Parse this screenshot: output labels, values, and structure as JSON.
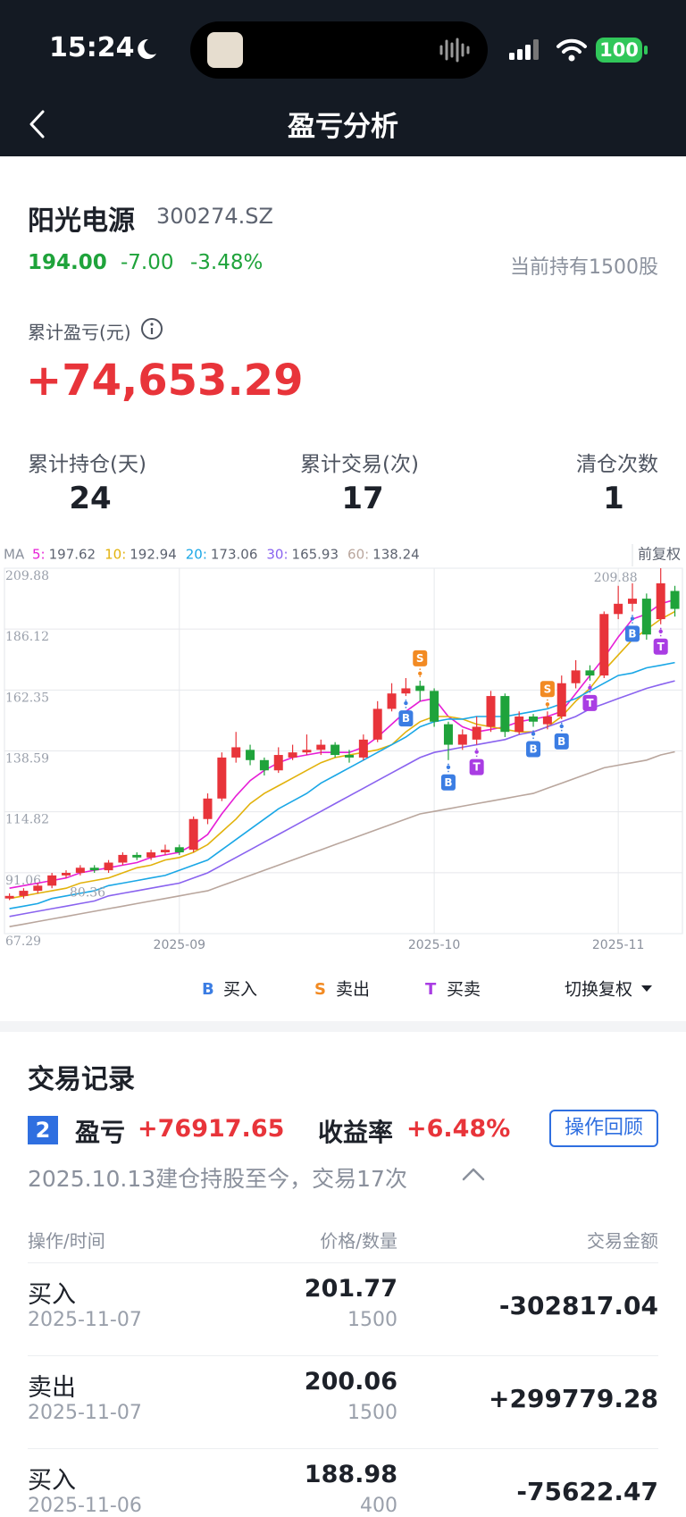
{
  "status_bar": {
    "time": "15:24",
    "battery": "100"
  },
  "nav": {
    "title": "盈亏分析"
  },
  "stock": {
    "name": "阳光电源",
    "code": "300274.SZ",
    "price": "194.00",
    "change": "-7.00",
    "change_pct": "-3.48%",
    "holding": "当前持有1500股"
  },
  "summary": {
    "pnl_label": "累计盈亏(元)",
    "pnl": "+74,653.29",
    "stats": [
      {
        "label": "累计持仓(天)",
        "value": "24"
      },
      {
        "label": "累计交易(次)",
        "value": "17"
      },
      {
        "label": "清仓次数",
        "value": "1"
      }
    ]
  },
  "chart_data": {
    "type": "candlestick",
    "ma_label": "MA",
    "corner_label": "前复权",
    "switch_label": "切换复权",
    "ylim": [
      67.29,
      209.88
    ],
    "yticks": [
      209.88,
      186.12,
      162.35,
      138.59,
      114.82,
      91.06,
      67.29
    ],
    "grid": true,
    "up_color": "#e8343a",
    "down_color": "#1fa33b",
    "categories": [
      null,
      null,
      null,
      null,
      null,
      null,
      null,
      null,
      null,
      null,
      null,
      null,
      "2025-09",
      null,
      null,
      null,
      null,
      null,
      null,
      null,
      null,
      null,
      null,
      null,
      null,
      null,
      null,
      null,
      null,
      null,
      "2025-10",
      null,
      null,
      null,
      null,
      null,
      null,
      null,
      null,
      null,
      null,
      null,
      null,
      "2025-11",
      null,
      null,
      null,
      null
    ],
    "candles": [
      [
        81,
        82,
        83,
        80.36
      ],
      [
        82,
        84,
        85,
        81
      ],
      [
        84,
        86,
        87,
        83
      ],
      [
        86,
        90,
        91,
        85
      ],
      [
        90,
        91,
        92,
        89
      ],
      [
        91,
        93,
        94,
        90
      ],
      [
        93,
        92,
        94,
        91
      ],
      [
        92,
        95,
        96,
        91
      ],
      [
        95,
        98,
        99,
        94
      ],
      [
        98,
        97,
        99,
        96
      ],
      [
        97,
        99,
        100,
        96
      ],
      [
        99,
        100,
        102,
        98
      ],
      [
        101,
        99,
        102,
        98
      ],
      [
        100,
        112,
        113,
        99
      ],
      [
        112,
        120,
        122,
        110
      ],
      [
        120,
        136,
        138,
        119
      ],
      [
        136,
        140,
        146,
        134
      ],
      [
        139,
        135,
        141,
        133
      ],
      [
        135,
        131,
        136,
        129
      ],
      [
        131,
        137,
        140,
        130
      ],
      [
        136,
        138,
        141,
        135
      ],
      [
        138,
        139,
        145,
        137
      ],
      [
        139,
        141,
        143,
        137
      ],
      [
        141,
        137,
        142,
        136
      ],
      [
        137,
        136,
        139,
        134
      ],
      [
        136,
        143,
        145,
        135
      ],
      [
        143,
        155,
        158,
        142
      ],
      [
        155,
        161,
        165,
        154
      ],
      [
        161,
        163,
        167,
        160
      ],
      [
        164,
        162,
        166,
        158
      ],
      [
        162,
        150,
        163,
        148
      ],
      [
        149,
        141,
        150,
        135
      ],
      [
        141,
        145,
        147,
        139
      ],
      [
        143,
        148,
        152,
        141
      ],
      [
        148,
        160,
        162,
        146
      ],
      [
        160,
        146,
        161,
        144
      ],
      [
        146,
        152,
        154,
        145
      ],
      [
        152,
        150,
        153,
        148
      ],
      [
        149,
        152,
        154,
        147
      ],
      [
        152,
        165,
        168,
        151
      ],
      [
        165,
        170,
        174,
        163
      ],
      [
        170,
        168,
        172,
        166
      ],
      [
        168,
        192,
        193,
        167
      ],
      [
        192,
        196,
        203,
        190
      ],
      [
        196,
        198,
        204,
        193
      ],
      [
        198,
        184,
        200,
        182
      ],
      [
        190,
        204,
        209.88,
        188
      ],
      [
        201,
        194,
        203,
        191
      ]
    ],
    "ma": [
      {
        "name": "5:",
        "latest": 197.62,
        "color": "#e61fd6",
        "values": [
          85,
          86,
          87,
          88,
          89,
          91,
          92,
          93,
          94,
          95,
          97,
          98,
          99,
          102,
          106,
          114,
          121,
          127,
          131,
          134,
          136,
          137,
          138,
          138,
          138,
          140,
          144,
          149,
          154,
          158,
          159,
          152,
          148,
          146,
          147,
          148,
          150,
          151,
          152,
          154,
          161,
          168,
          175,
          183,
          190,
          192,
          196,
          197.62
        ]
      },
      {
        "name": "10:",
        "latest": 192.94,
        "color": "#e2b20c",
        "values": [
          81,
          82,
          83,
          84,
          85,
          87,
          88,
          89,
          91,
          93,
          94,
          96,
          97,
          99,
          102,
          107,
          112,
          118,
          122,
          125,
          128,
          131,
          134,
          136,
          137,
          138,
          139,
          141,
          146,
          150,
          152,
          152,
          151,
          149,
          148,
          147,
          146,
          146,
          148,
          152,
          158,
          163,
          170,
          176,
          182,
          186,
          190,
          192.94
        ]
      },
      {
        "name": "20:",
        "latest": 173.06,
        "color": "#1aa7e6",
        "values": [
          77,
          78,
          79,
          81,
          82,
          83,
          84,
          86,
          87,
          88,
          89,
          90,
          92,
          94,
          96,
          100,
          104,
          108,
          112,
          116,
          119,
          122,
          126,
          129,
          132,
          135,
          138,
          141,
          144,
          148,
          150,
          151,
          151,
          152,
          152,
          152,
          153,
          154,
          155,
          157,
          159,
          162,
          165,
          168,
          169,
          171,
          172,
          173.06
        ]
      },
      {
        "name": "30:",
        "latest": 165.93,
        "color": "#8a63ef",
        "values": [
          74,
          75,
          76,
          77,
          78,
          79,
          80,
          82,
          83,
          84,
          85,
          86,
          87,
          89,
          91,
          94,
          97,
          100,
          103,
          106,
          109,
          112,
          115,
          118,
          121,
          124,
          127,
          130,
          133,
          136,
          138,
          139,
          140,
          141,
          142,
          143,
          145,
          146,
          148,
          150,
          152,
          155,
          157,
          159,
          161,
          163,
          164.5,
          165.93
        ]
      },
      {
        "name": "60:",
        "latest": 138.24,
        "color": "#b9a69d",
        "values": [
          70,
          71,
          72,
          73,
          74,
          75,
          76,
          77,
          78,
          79,
          80,
          81,
          82,
          83,
          84,
          86,
          88,
          90,
          92,
          94,
          96,
          98,
          100,
          102,
          104,
          106,
          108,
          110,
          112,
          114,
          115,
          116,
          117,
          118,
          119,
          120,
          121,
          122,
          124,
          126,
          128,
          130,
          132,
          133,
          134,
          135,
          137,
          138.24
        ]
      }
    ],
    "markers": [
      null,
      null,
      null,
      null,
      null,
      null,
      null,
      null,
      null,
      null,
      null,
      null,
      null,
      null,
      null,
      null,
      null,
      null,
      null,
      null,
      null,
      null,
      null,
      null,
      null,
      null,
      null,
      null,
      "B",
      "S",
      null,
      "B",
      null,
      "T",
      null,
      null,
      null,
      "B",
      "S",
      "B",
      null,
      "T",
      null,
      null,
      "B",
      null,
      "T",
      null
    ],
    "legend": [
      {
        "symbol": "B",
        "label": "买入",
        "color": "#3b7de3",
        "placement": "below"
      },
      {
        "symbol": "S",
        "label": "卖出",
        "color": "#f28a22",
        "placement": "above"
      },
      {
        "symbol": "T",
        "label": "买卖",
        "color": "#a93de3",
        "placement": "below"
      }
    ],
    "max_label": 209.88,
    "min_label": 80.36
  },
  "trades": {
    "title": "交易记录",
    "badge": "2",
    "pnl_label": "盈亏",
    "pnl": "+76917.65",
    "return_label": "收益率",
    "return": "+6.48%",
    "button": "操作回顾",
    "summary": "2025.10.13建仓持股至今，交易17次",
    "columns": [
      "操作/时间",
      "价格/数量",
      "交易金额"
    ],
    "rows": [
      {
        "action": "买入",
        "date": "2025-11-07",
        "price": "201.77",
        "qty": "1500",
        "amount": "-302817.04"
      },
      {
        "action": "卖出",
        "date": "2025-11-07",
        "price": "200.06",
        "qty": "1500",
        "amount": "+299779.28"
      },
      {
        "action": "买入",
        "date": "2025-11-06",
        "price": "188.98",
        "qty": "400",
        "amount": "-75622.47"
      }
    ]
  }
}
